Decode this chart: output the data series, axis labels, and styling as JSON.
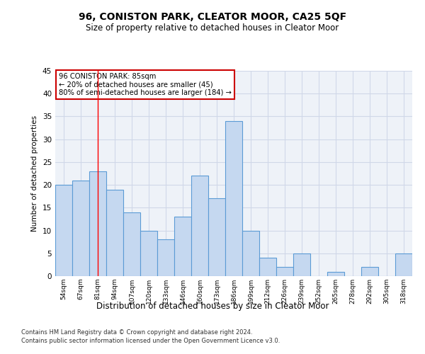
{
  "title": "96, CONISTON PARK, CLEATOR MOOR, CA25 5QF",
  "subtitle": "Size of property relative to detached houses in Cleator Moor",
  "xlabel": "Distribution of detached houses by size in Cleator Moor",
  "ylabel": "Number of detached properties",
  "footnote1": "Contains HM Land Registry data © Crown copyright and database right 2024.",
  "footnote2": "Contains public sector information licensed under the Open Government Licence v3.0.",
  "categories": [
    "54sqm",
    "67sqm",
    "81sqm",
    "94sqm",
    "107sqm",
    "120sqm",
    "133sqm",
    "146sqm",
    "160sqm",
    "173sqm",
    "186sqm",
    "199sqm",
    "212sqm",
    "226sqm",
    "239sqm",
    "252sqm",
    "265sqm",
    "278sqm",
    "292sqm",
    "305sqm",
    "318sqm"
  ],
  "values": [
    20,
    21,
    23,
    19,
    14,
    10,
    8,
    13,
    22,
    17,
    34,
    10,
    4,
    2,
    5,
    0,
    1,
    0,
    2,
    0,
    5
  ],
  "bar_color": "#c5d8f0",
  "bar_edge_color": "#5b9bd5",
  "grid_color": "#d0d8e8",
  "background_color": "#eef2f8",
  "annotation_line1": "96 CONISTON PARK: 85sqm",
  "annotation_line2": "← 20% of detached houses are smaller (45)",
  "annotation_line3": "80% of semi-detached houses are larger (184) →",
  "annotation_box_color": "#ffffff",
  "annotation_box_edge_color": "#cc0000",
  "red_line_x": 2,
  "ylim": [
    0,
    45
  ],
  "yticks": [
    0,
    5,
    10,
    15,
    20,
    25,
    30,
    35,
    40,
    45
  ]
}
